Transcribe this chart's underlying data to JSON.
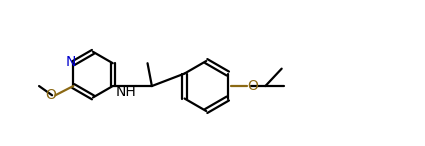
{
  "bg_color": "#ffffff",
  "bond_color": "#000000",
  "n_color": "#0000cd",
  "o_color": "#8B6914",
  "line_width": 1.6,
  "figsize": [
    4.25,
    1.46
  ],
  "dpi": 100,
  "xlim": [
    0.2,
    8.0
  ],
  "ylim": [
    0.5,
    2.6
  ]
}
